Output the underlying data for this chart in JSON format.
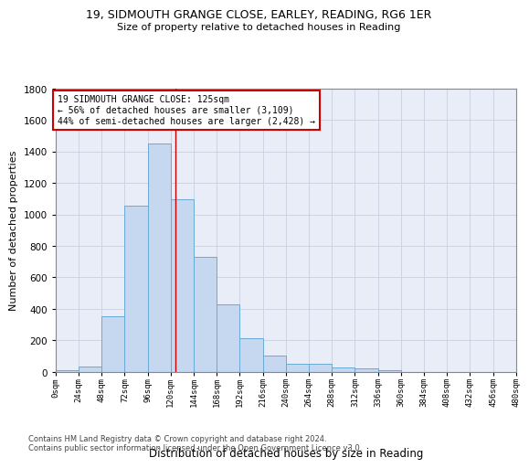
{
  "title1": "19, SIDMOUTH GRANGE CLOSE, EARLEY, READING, RG6 1ER",
  "title2": "Size of property relative to detached houses in Reading",
  "xlabel": "Distribution of detached houses by size in Reading",
  "ylabel": "Number of detached properties",
  "bin_labels": [
    "0sqm",
    "24sqm",
    "48sqm",
    "72sqm",
    "96sqm",
    "120sqm",
    "144sqm",
    "168sqm",
    "192sqm",
    "216sqm",
    "240sqm",
    "264sqm",
    "288sqm",
    "312sqm",
    "336sqm",
    "360sqm",
    "384sqm",
    "408sqm",
    "432sqm",
    "456sqm",
    "480sqm"
  ],
  "bar_values": [
    10,
    35,
    350,
    1055,
    1450,
    1095,
    730,
    430,
    215,
    105,
    52,
    48,
    30,
    20,
    8,
    0,
    0,
    0,
    0,
    0,
    0
  ],
  "bar_color": "#c5d8f0",
  "bar_edge_color": "#6aaad4",
  "grid_color": "#c8cfe0",
  "vline_x": 125,
  "vline_color": "#cc0000",
  "annotation_text": "19 SIDMOUTH GRANGE CLOSE: 125sqm\n← 56% of detached houses are smaller (3,109)\n44% of semi-detached houses are larger (2,428) →",
  "annotation_box_color": "#ffffff",
  "annotation_box_edge": "#cc0000",
  "footer1": "Contains HM Land Registry data © Crown copyright and database right 2024.",
  "footer2": "Contains public sector information licensed under the Open Government Licence v3.0.",
  "ylim": [
    0,
    1800
  ],
  "bin_width": 24,
  "yticks": [
    0,
    200,
    400,
    600,
    800,
    1000,
    1200,
    1400,
    1600,
    1800
  ]
}
